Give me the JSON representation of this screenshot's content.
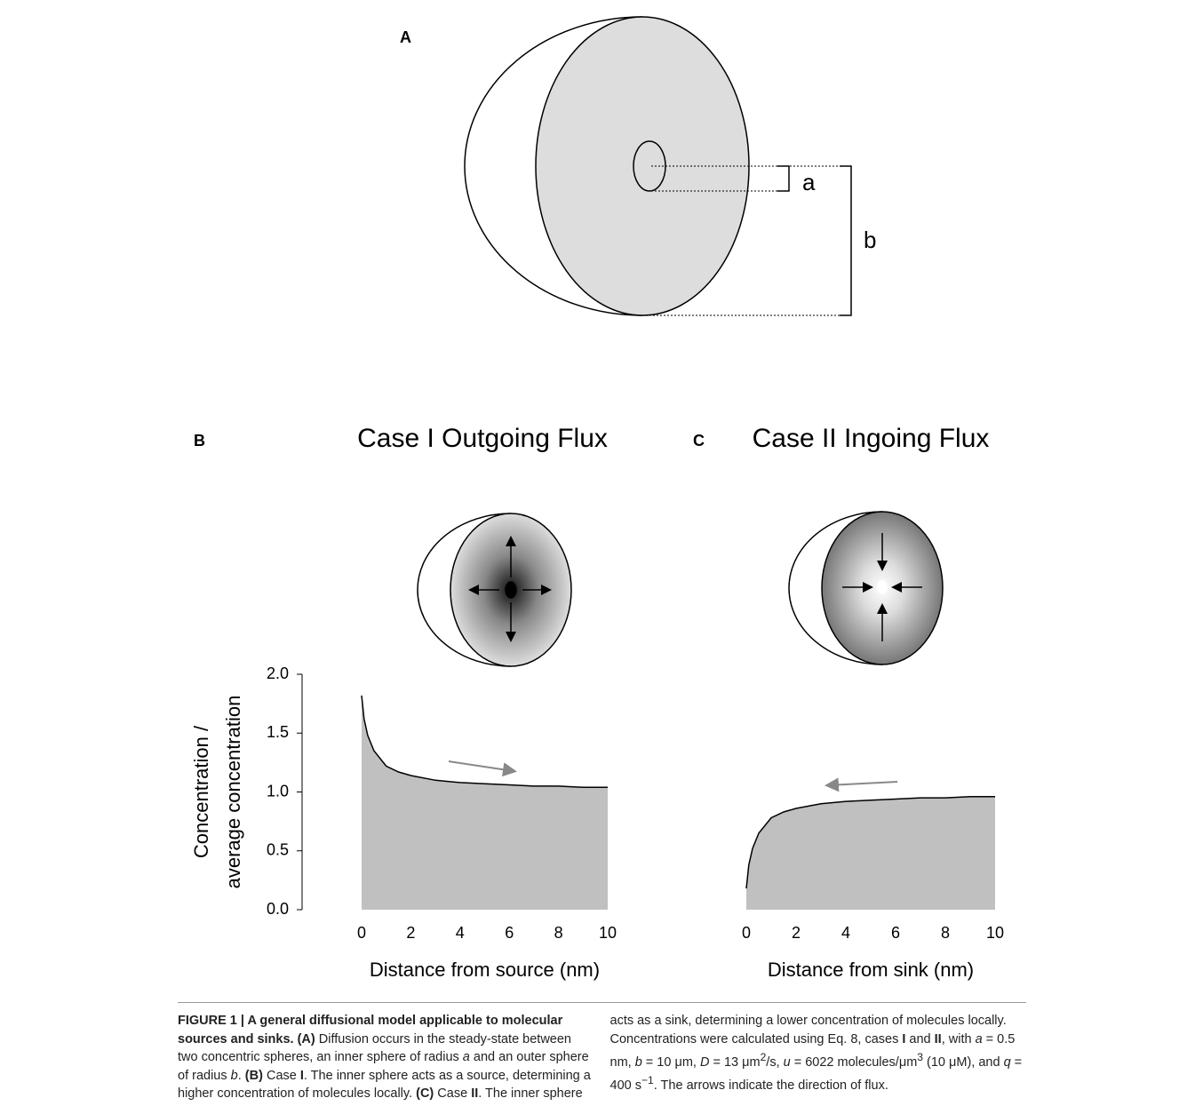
{
  "panel_a": {
    "label": "A",
    "inner_radius_label": "a",
    "outer_radius_label": "b"
  },
  "chart_data": [
    {
      "type": "area",
      "panel": "B",
      "title": "Case I Outgoing Flux",
      "xlabel": "Distance from source (nm)",
      "ylabel": [
        "Concentration /",
        "average concentration"
      ],
      "color": "#c0c0c0",
      "x": [
        0,
        0.1,
        0.25,
        0.5,
        1,
        1.5,
        2,
        3,
        4,
        5,
        6,
        7,
        8,
        9,
        10
      ],
      "values": [
        1.82,
        1.62,
        1.48,
        1.35,
        1.22,
        1.17,
        1.14,
        1.1,
        1.08,
        1.07,
        1.06,
        1.05,
        1.05,
        1.04,
        1.04
      ],
      "xlim": [
        0,
        10
      ],
      "xticks": [
        0,
        2,
        4,
        6,
        8,
        10
      ],
      "ylim": [
        0,
        2
      ],
      "yticks": [
        {
          "value": 0,
          "label": "0.0"
        },
        {
          "value": 0.5,
          "label": "0.5"
        },
        {
          "value": 1,
          "label": "1.0"
        },
        {
          "value": 1.5,
          "label": "1.5"
        },
        {
          "value": 2,
          "label": "2.0"
        }
      ]
    },
    {
      "type": "area",
      "panel": "C",
      "title": "Case II Ingoing Flux",
      "xlabel": "Distance from sink (nm)",
      "color": "#c0c0c0",
      "x": [
        0,
        0.1,
        0.25,
        0.5,
        1,
        1.5,
        2,
        3,
        4,
        5,
        6,
        7,
        8,
        9,
        10
      ],
      "values": [
        0.18,
        0.38,
        0.52,
        0.65,
        0.78,
        0.83,
        0.86,
        0.9,
        0.92,
        0.93,
        0.94,
        0.95,
        0.95,
        0.96,
        0.96
      ],
      "xlim": [
        0,
        10
      ],
      "xticks": [
        0,
        2,
        4,
        6,
        8,
        10
      ],
      "ylim": [
        0,
        2
      ]
    }
  ],
  "caption": [
    "FIGURE 1 | A general diffusional model applicable to molecular sources and sinks. (A)",
    " Diffusion occurs in the steady-state between two concentric spheres, an inner sphere of radius ",
    "a",
    " and an outer sphere of radius ",
    "b",
    ". ",
    "(B)",
    " Case ",
    "I",
    ". The inner sphere acts as a source, determining a higher concentration of molecules locally. ",
    "(C)",
    " Case ",
    "II",
    ". The inner sphere acts as a sink, determining a lower concentration of molecules locally. Concentrations were calculated using Eq. 8, cases ",
    "I",
    " and ",
    "II",
    ", with ",
    "a",
    " = 0.5 nm, ",
    "b",
    " = 10 μm, ",
    "D",
    " = 13 μm",
    "2",
    "/s, ",
    "u",
    " = 6022 molecules/μm",
    "3",
    " (10 μM), and ",
    "q",
    " = 400 s",
    "−1",
    ". The arrows indicate the direction of flux."
  ]
}
